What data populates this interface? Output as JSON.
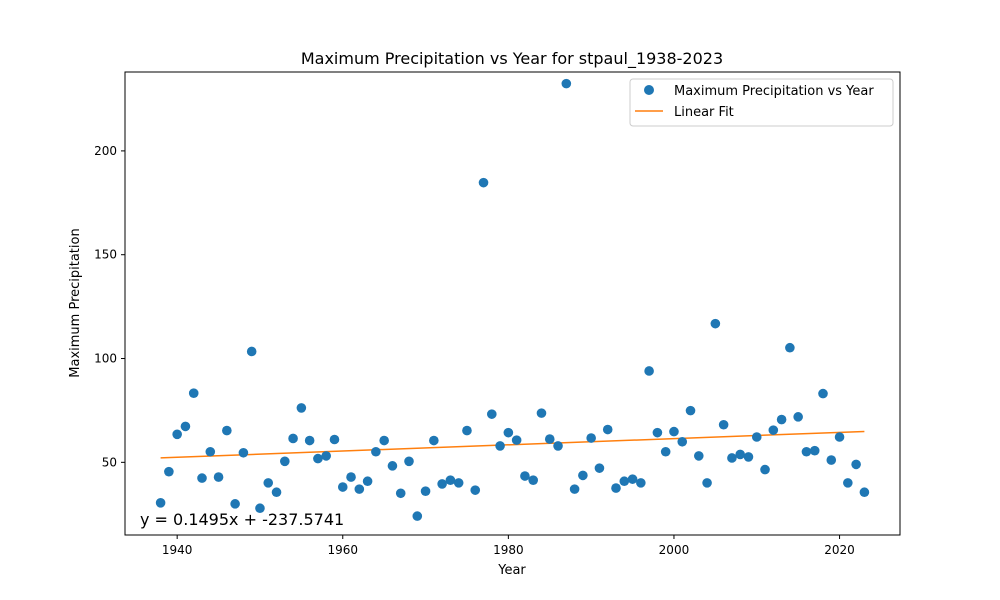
{
  "chart_data": {
    "type": "scatter",
    "title": "Maximum Precipitation vs Year for stpaul_1938-2023",
    "xlabel": "Year",
    "ylabel": "Maximum Precipitation",
    "xlim": [
      1933.7,
      2027.3
    ],
    "ylim": [
      15,
      238
    ],
    "xticks": [
      1940,
      1960,
      1980,
      2000,
      2020
    ],
    "yticks": [
      50,
      100,
      150,
      200
    ],
    "grid": false,
    "legend_position": "top-right",
    "series": [
      {
        "name": "Maximum Precipitation vs Year",
        "kind": "scatter",
        "color": "#1f77b4",
        "x": [
          1938,
          1939,
          1940,
          1941,
          1942,
          1943,
          1944,
          1945,
          1946,
          1947,
          1948,
          1949,
          1950,
          1951,
          1952,
          1953,
          1954,
          1955,
          1956,
          1957,
          1958,
          1959,
          1960,
          1961,
          1962,
          1963,
          1964,
          1965,
          1966,
          1967,
          1968,
          1969,
          1970,
          1971,
          1972,
          1973,
          1974,
          1975,
          1976,
          1977,
          1978,
          1979,
          1980,
          1981,
          1982,
          1983,
          1984,
          1985,
          1986,
          1987,
          1988,
          1989,
          1990,
          1991,
          1992,
          1993,
          1994,
          1995,
          1996,
          1997,
          1998,
          1999,
          2000,
          2001,
          2002,
          2003,
          2004,
          2005,
          2006,
          2007,
          2008,
          2009,
          2010,
          2011,
          2012,
          2013,
          2014,
          2015,
          2016,
          2017,
          2018,
          2019,
          2020,
          2021,
          2022,
          2023
        ],
        "y": [
          30.5,
          45.5,
          63.5,
          67.3,
          83.3,
          42.4,
          55.1,
          42.9,
          65.3,
          30.0,
          54.6,
          103.4,
          27.9,
          40.1,
          35.6,
          50.5,
          61.5,
          76.2,
          60.5,
          51.8,
          53.1,
          61.0,
          38.1,
          42.9,
          37.1,
          40.9,
          55.1,
          60.5,
          48.3,
          35.1,
          50.5,
          24.1,
          36.1,
          60.5,
          39.6,
          41.4,
          40.1,
          65.3,
          36.6,
          184.7,
          73.2,
          57.9,
          64.3,
          60.7,
          43.4,
          41.4,
          73.7,
          61.2,
          57.9,
          232.4,
          37.1,
          43.7,
          61.7,
          47.2,
          65.8,
          37.6,
          40.9,
          41.9,
          40.1,
          94.0,
          64.3,
          55.1,
          64.8,
          59.9,
          74.9,
          53.1,
          40.1,
          116.8,
          68.1,
          52.1,
          53.8,
          52.6,
          62.2,
          46.5,
          65.5,
          70.6,
          105.2,
          71.9,
          55.1,
          55.6,
          83.1,
          51.1,
          62.2,
          40.1,
          49.0,
          35.6
        ]
      },
      {
        "name": "Linear Fit",
        "kind": "line",
        "color": "#ff7f0e",
        "slope": 0.1495,
        "intercept": -237.5741,
        "x_range": [
          1938,
          2023
        ]
      }
    ],
    "annotation": "y = 0.1495x + -237.5741"
  }
}
